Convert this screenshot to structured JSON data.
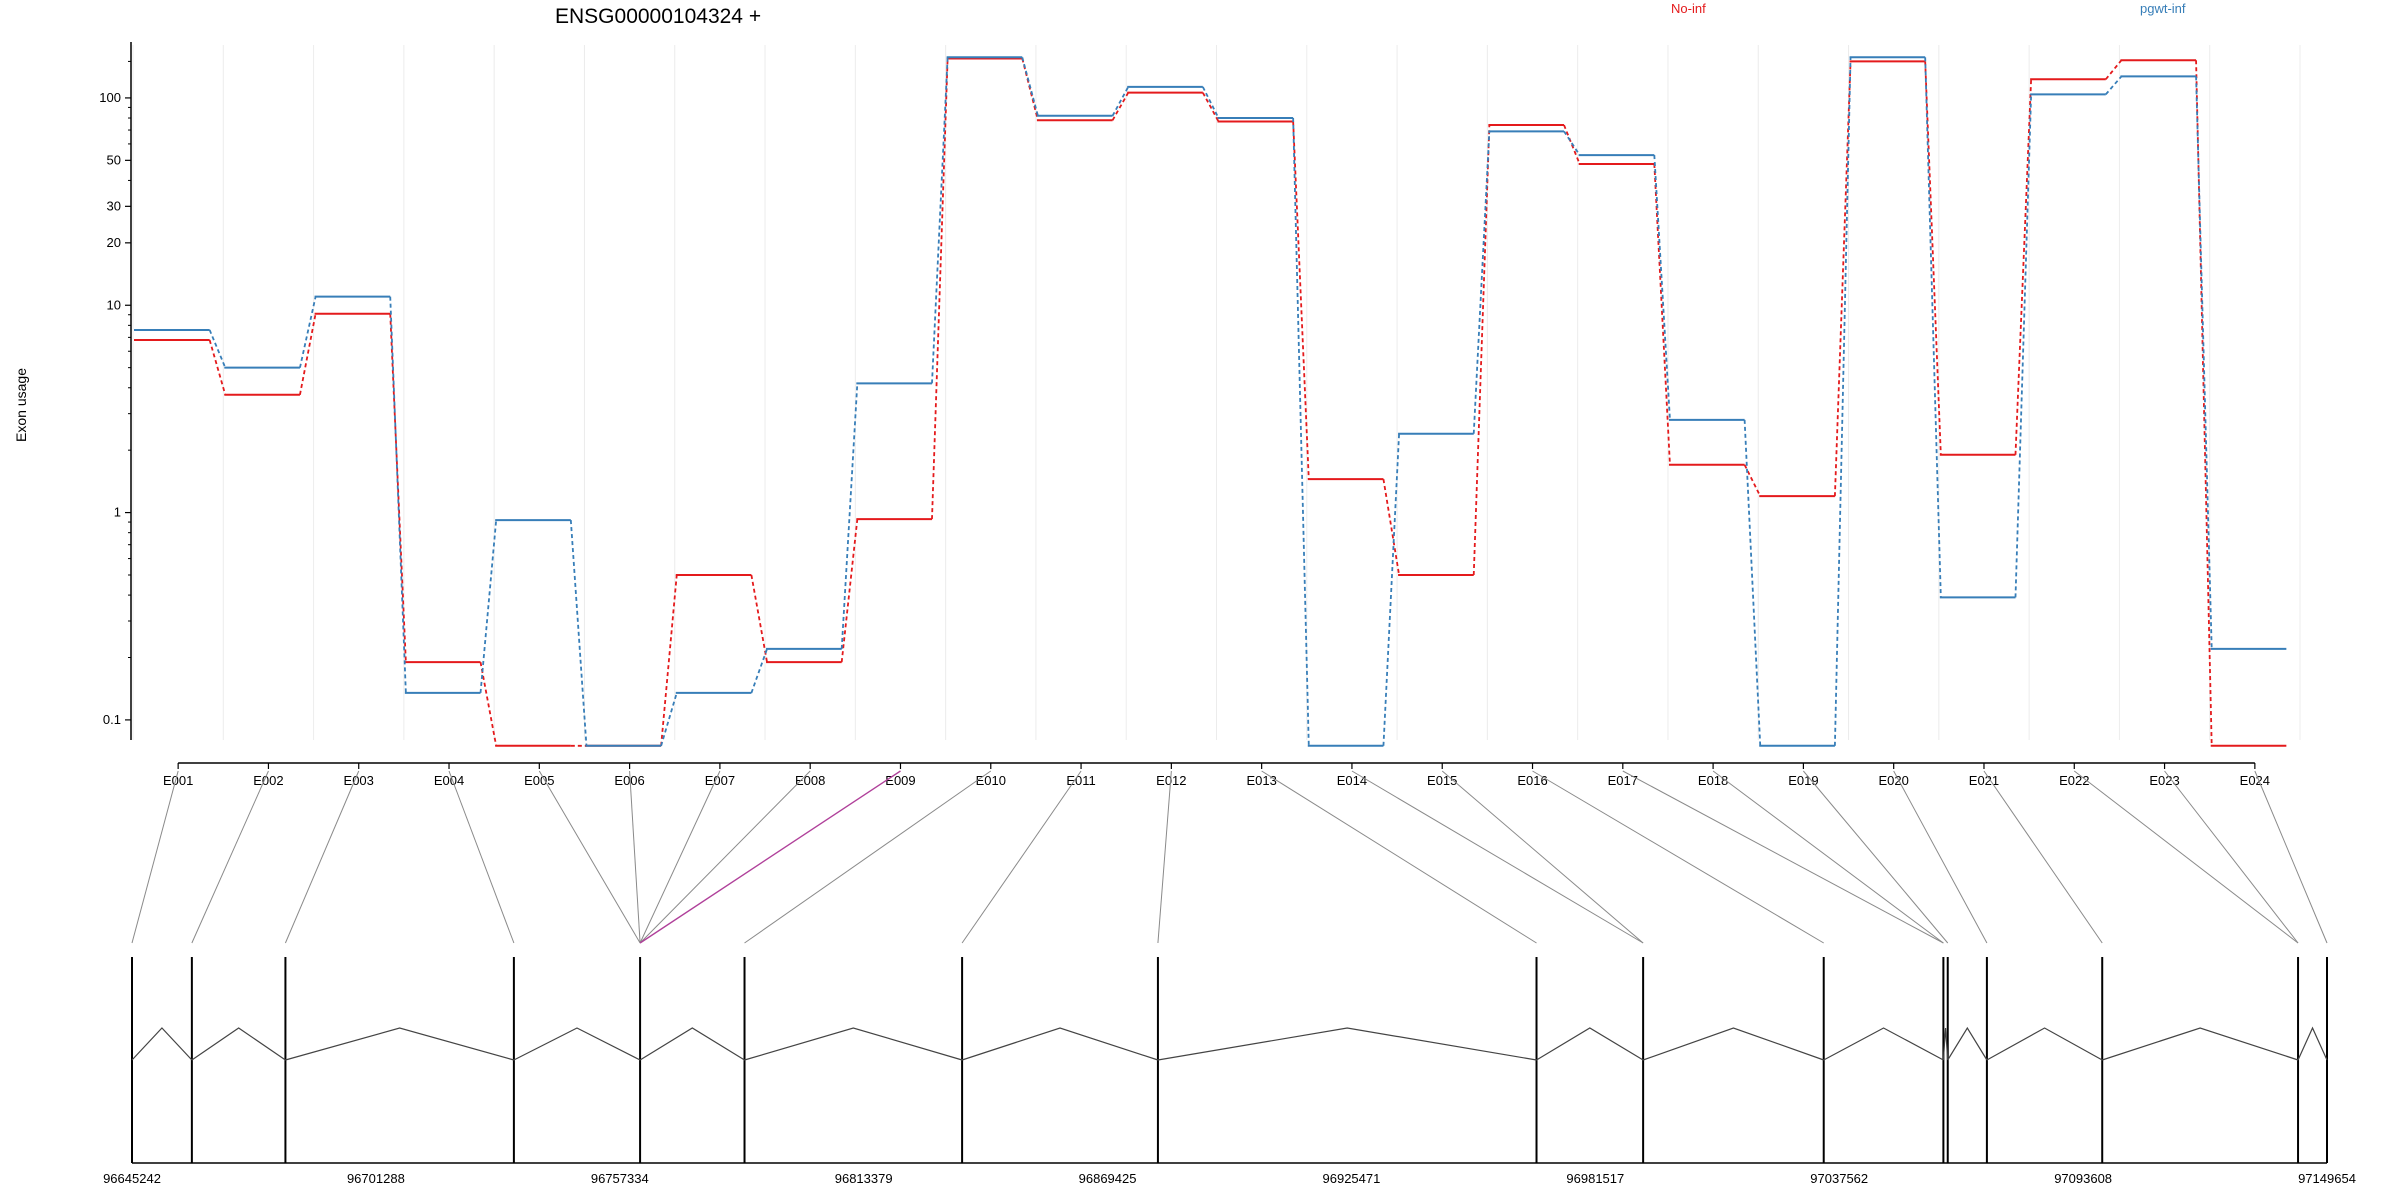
{
  "chart_data": {
    "type": "line",
    "title": "ENSG00000104324 +",
    "ylabel": "Exon usage",
    "xlabel": "",
    "y_scale": "log",
    "ylim": [
      0.08,
      180
    ],
    "y_ticks": [
      0.1,
      1,
      10,
      20,
      30,
      50,
      100
    ],
    "y_tick_labels": [
      "0.1",
      "1",
      "10",
      "20",
      "30",
      "50",
      "100"
    ],
    "grid": "vertical",
    "legend_position": "top",
    "categories": [
      "E001",
      "E002",
      "E003",
      "E004",
      "E005",
      "E006",
      "E007",
      "E008",
      "E009",
      "E010",
      "E011",
      "E012",
      "E013",
      "E014",
      "E015",
      "E016",
      "E017",
      "E018",
      "E019",
      "E020",
      "E021",
      "E022",
      "E023",
      "E024"
    ],
    "series": [
      {
        "name": "No-inf",
        "color": "#e41a1c",
        "values": [
          6.8,
          3.7,
          9.1,
          0.19,
          0.075,
          0.075,
          0.5,
          0.19,
          0.93,
          155,
          78,
          106,
          77,
          1.45,
          0.5,
          74,
          48,
          1.7,
          1.2,
          150,
          1.9,
          123,
          152,
          0.075
        ]
      },
      {
        "name": "pgwt-inf",
        "color": "#377eb8",
        "values": [
          7.6,
          5.0,
          11.0,
          0.135,
          0.92,
          0.075,
          0.135,
          0.22,
          4.2,
          157,
          82,
          113,
          80,
          0.075,
          2.4,
          69,
          53,
          2.8,
          0.075,
          157,
          0.39,
          104,
          127,
          0.22
        ]
      }
    ],
    "exon_model": {
      "coordinate_labels": [
        "96645242",
        "96701288",
        "96757334",
        "96813379",
        "96869425",
        "96925471",
        "96981517",
        "97037562",
        "97093608",
        "97149654"
      ],
      "coordinate_range": [
        96645242,
        97149654
      ],
      "exon_genomic_positions": [
        96645242,
        96659000,
        96680500,
        96733000,
        96762000,
        96762000,
        96762000,
        96762000,
        96762000,
        96786000,
        96836000,
        96881000,
        96968000,
        96992500,
        96992500,
        97034000,
        97061500,
        97061500,
        97062500,
        97071500,
        97098000,
        97143000,
        97143000,
        97149654
      ],
      "highlighted_exon": "E009",
      "highlight_color": "#b0409a",
      "line_color": "#444444"
    }
  }
}
